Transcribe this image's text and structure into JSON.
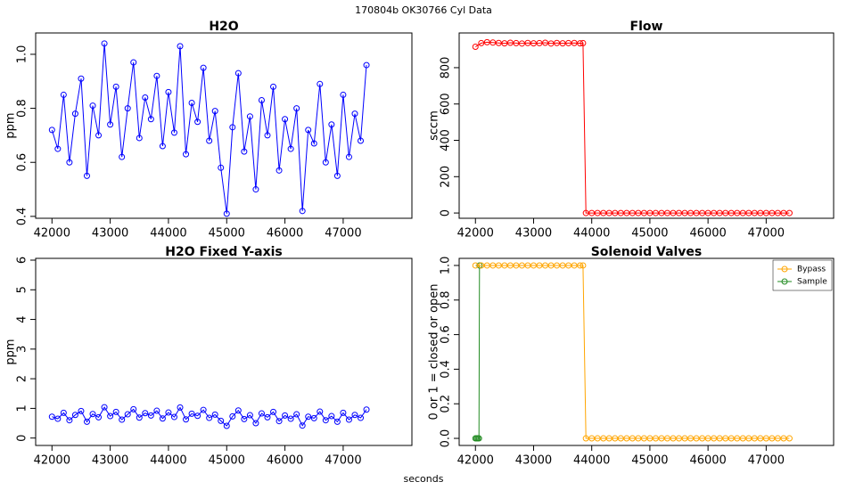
{
  "title": "170804b    OK30766   Cyl Data",
  "xlabel": "seconds",
  "chart_data": [
    {
      "type": "line",
      "title": "H2O",
      "ylabel": "ppm",
      "markers": true,
      "x": [
        42000,
        42100,
        42200,
        42300,
        42400,
        42500,
        42600,
        42700,
        42800,
        42900,
        43000,
        43100,
        43200,
        43300,
        43400,
        43500,
        43600,
        43700,
        43800,
        43900,
        44000,
        44100,
        44200,
        44300,
        44400,
        44500,
        44600,
        44700,
        44800,
        44900,
        45000,
        45100,
        45200,
        45300,
        45400,
        45500,
        45600,
        45700,
        45800,
        45900,
        46000,
        46100,
        46200,
        46300,
        46400,
        46500,
        46600,
        46700,
        46800,
        46900,
        47000,
        47100,
        47200,
        47300,
        47400
      ],
      "series": [
        {
          "name": "H2O",
          "color": "#0000ff",
          "values": [
            0.72,
            0.65,
            0.85,
            0.6,
            0.78,
            0.91,
            0.55,
            0.81,
            0.7,
            1.04,
            0.74,
            0.88,
            0.62,
            0.8,
            0.97,
            0.69,
            0.84,
            0.76,
            0.92,
            0.66,
            0.86,
            0.71,
            1.03,
            0.63,
            0.82,
            0.75,
            0.95,
            0.68,
            0.79,
            0.58,
            0.41,
            0.73,
            0.93,
            0.64,
            0.77,
            0.5,
            0.83,
            0.7,
            0.88,
            0.57,
            0.76,
            0.65,
            0.8,
            0.42,
            0.72,
            0.67,
            0.89,
            0.6,
            0.74,
            0.55,
            0.85,
            0.62,
            0.78,
            0.68,
            0.96
          ]
        }
      ],
      "xlim": [
        41720,
        48180
      ],
      "xticks": [
        42000,
        43000,
        44000,
        45000,
        46000,
        47000
      ],
      "ylim": [
        0.393,
        1.079
      ],
      "yticks": [
        0.4,
        0.6,
        0.8,
        {
          "value": 1,
          "label": "1.0"
        }
      ]
    },
    {
      "type": "line",
      "title": "Flow",
      "ylabel": "sccm",
      "markers": true,
      "x": [
        42000,
        42100,
        42200,
        42300,
        42400,
        42500,
        42600,
        42700,
        42800,
        42900,
        43000,
        43100,
        43200,
        43300,
        43400,
        43500,
        43600,
        43700,
        43800,
        43850,
        43900,
        44000,
        44100,
        44200,
        44300,
        44400,
        44500,
        44600,
        44700,
        44800,
        44900,
        45000,
        45100,
        45200,
        45300,
        45400,
        45500,
        45600,
        45700,
        45800,
        45900,
        46000,
        46100,
        46200,
        46300,
        46400,
        46500,
        46600,
        46700,
        46800,
        46900,
        47000,
        47100,
        47200,
        47300,
        47400
      ],
      "series": [
        {
          "name": "Flow",
          "color": "#ff0000",
          "values": [
            915,
            935,
            940,
            938,
            936,
            934,
            937,
            935,
            933,
            936,
            934,
            935,
            937,
            933,
            936,
            934,
            935,
            936,
            934,
            935,
            0,
            0,
            0,
            0,
            0,
            0,
            0,
            0,
            0,
            0,
            0,
            0,
            0,
            0,
            0,
            0,
            0,
            0,
            0,
            0,
            0,
            0,
            0,
            0,
            0,
            0,
            0,
            0,
            0,
            0,
            0,
            0,
            0,
            0,
            0,
            0
          ]
        }
      ],
      "xlim": [
        41720,
        48160
      ],
      "xticks": [
        42000,
        43000,
        44000,
        45000,
        46000,
        47000
      ],
      "ylim": [
        -29,
        991
      ],
      "yticks": [
        0,
        200,
        400,
        600,
        800
      ]
    },
    {
      "type": "line",
      "title": "H2O Fixed Y-axis",
      "ylabel": "ppm",
      "markers": true,
      "x": [
        42000,
        42100,
        42200,
        42300,
        42400,
        42500,
        42600,
        42700,
        42800,
        42900,
        43000,
        43100,
        43200,
        43300,
        43400,
        43500,
        43600,
        43700,
        43800,
        43900,
        44000,
        44100,
        44200,
        44300,
        44400,
        44500,
        44600,
        44700,
        44800,
        44900,
        45000,
        45100,
        45200,
        45300,
        45400,
        45500,
        45600,
        45700,
        45800,
        45900,
        46000,
        46100,
        46200,
        46300,
        46400,
        46500,
        46600,
        46700,
        46800,
        46900,
        47000,
        47100,
        47200,
        47300,
        47400
      ],
      "series": [
        {
          "name": "H2O",
          "color": "#0000ff",
          "values": [
            0.72,
            0.65,
            0.85,
            0.6,
            0.78,
            0.91,
            0.55,
            0.81,
            0.7,
            1.04,
            0.74,
            0.88,
            0.62,
            0.8,
            0.97,
            0.69,
            0.84,
            0.76,
            0.92,
            0.66,
            0.86,
            0.71,
            1.03,
            0.63,
            0.82,
            0.75,
            0.95,
            0.68,
            0.79,
            0.58,
            0.41,
            0.73,
            0.93,
            0.64,
            0.77,
            0.5,
            0.83,
            0.7,
            0.88,
            0.57,
            0.76,
            0.65,
            0.8,
            0.42,
            0.72,
            0.67,
            0.89,
            0.6,
            0.74,
            0.55,
            0.85,
            0.62,
            0.78,
            0.68,
            0.96
          ]
        }
      ],
      "xlim": [
        41720,
        48180
      ],
      "xticks": [
        42000,
        43000,
        44000,
        45000,
        46000,
        47000
      ],
      "ylim": [
        -0.25,
        6.06
      ],
      "yticks": [
        0,
        1,
        2,
        3,
        4,
        5,
        6
      ]
    },
    {
      "type": "line",
      "title": "Solenoid Valves",
      "ylabel": "0 or 1 = closed or open",
      "markers": true,
      "legend": "topright",
      "series": [
        {
          "name": "Sample",
          "color": "#228b22",
          "x": [
            42000,
            42020,
            42040,
            42060,
            42070
          ],
          "values": [
            0,
            0,
            0,
            0,
            1
          ]
        },
        {
          "name": "Bypass",
          "color": "#ffa500",
          "x": [
            42000,
            42100,
            42200,
            42300,
            42400,
            42500,
            42600,
            42700,
            42800,
            42900,
            43000,
            43100,
            43200,
            43300,
            43400,
            43500,
            43600,
            43700,
            43800,
            43850,
            43900,
            44000,
            44100,
            44200,
            44300,
            44400,
            44500,
            44600,
            44700,
            44800,
            44900,
            45000,
            45100,
            45200,
            45300,
            45400,
            45500,
            45600,
            45700,
            45800,
            45900,
            46000,
            46100,
            46200,
            46300,
            46400,
            46500,
            46600,
            46700,
            46800,
            46900,
            47000,
            47100,
            47200,
            47300,
            47400
          ],
          "values": [
            1,
            1,
            1,
            1,
            1,
            1,
            1,
            1,
            1,
            1,
            1,
            1,
            1,
            1,
            1,
            1,
            1,
            1,
            1,
            1,
            0,
            0,
            0,
            0,
            0,
            0,
            0,
            0,
            0,
            0,
            0,
            0,
            0,
            0,
            0,
            0,
            0,
            0,
            0,
            0,
            0,
            0,
            0,
            0,
            0,
            0,
            0,
            0,
            0,
            0,
            0,
            0,
            0,
            0,
            0,
            0
          ]
        }
      ],
      "xlim": [
        41720,
        48160
      ],
      "xticks": [
        42000,
        43000,
        44000,
        45000,
        46000,
        47000
      ],
      "ylim": [
        -0.041,
        1.041
      ],
      "yticks": [
        {
          "value": 0,
          "label": "0.0"
        },
        0.2,
        0.4,
        0.6,
        0.8,
        {
          "value": 1,
          "label": "1.0"
        }
      ]
    }
  ]
}
